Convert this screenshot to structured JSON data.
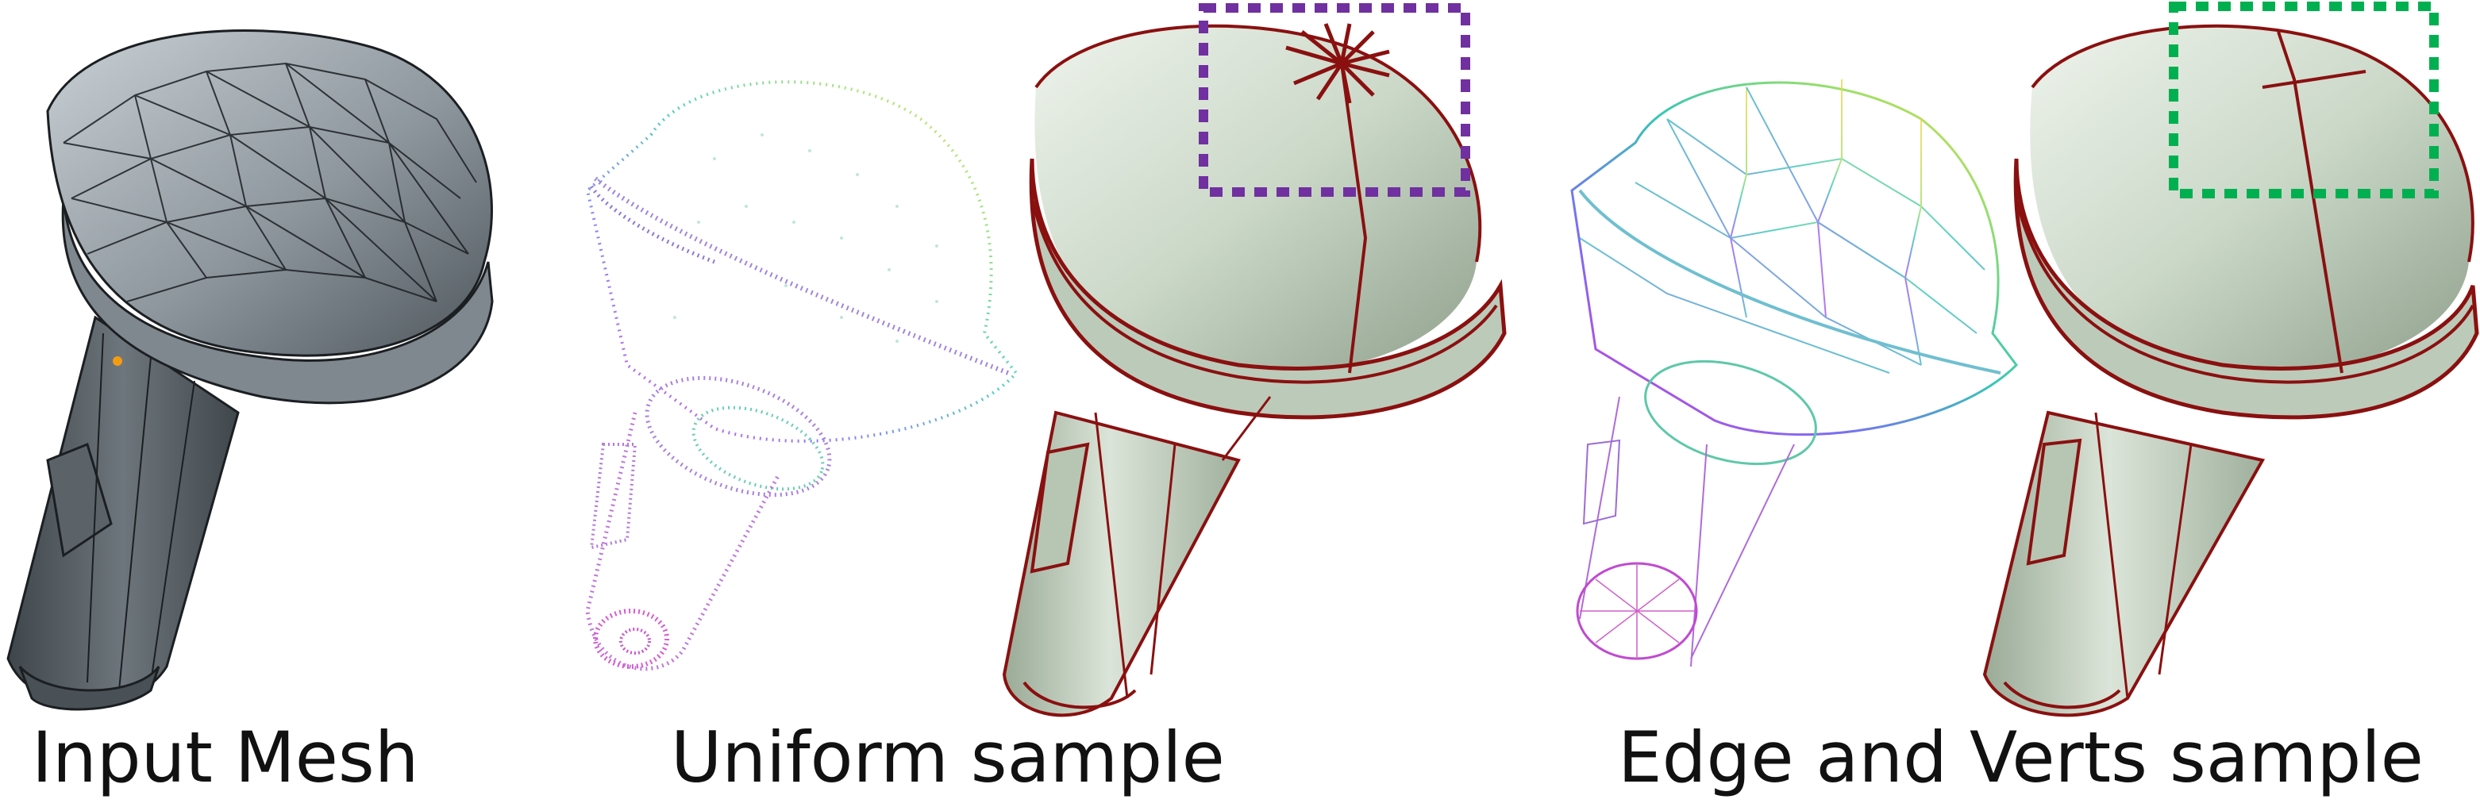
{
  "captions": {
    "input": "Input Mesh",
    "uniform": "Uniform sample",
    "edge_verts": "Edge and Verts sample"
  },
  "panels": [
    {
      "name": "input-mesh",
      "style": "gray shaded triangle mesh"
    },
    {
      "name": "uniform-point-cloud",
      "style": "rainbow colored point cloud"
    },
    {
      "name": "uniform-result-mesh",
      "style": "light green shaded mesh with dark red feature lines"
    },
    {
      "name": "edge-verts-wireframe",
      "style": "rainbow colored wireframe"
    },
    {
      "name": "edge-verts-result-mesh",
      "style": "light green shaded mesh with dark red feature lines"
    }
  ],
  "colors": {
    "mesh_gray": "#8e979e",
    "mesh_edge": "#1b1f22",
    "result_green": "#cbd8c8",
    "feature_red": "#8a1010",
    "highlight_purple": "#7030a0",
    "highlight_green": "#00b050",
    "vertex_dot": "#f39c12"
  }
}
